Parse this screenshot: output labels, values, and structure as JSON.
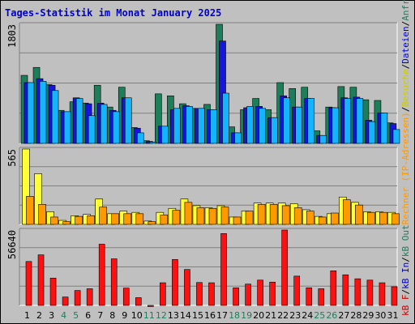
{
  "chart_data": {
    "type": "bar",
    "title": "Tages-Statistik im Monat January 2025",
    "categories": [
      "1",
      "2",
      "3",
      "4",
      "5",
      "6",
      "7",
      "8",
      "9",
      "10",
      "11",
      "12",
      "13",
      "14",
      "15",
      "16",
      "17",
      "18",
      "19",
      "20",
      "21",
      "22",
      "23",
      "24",
      "25",
      "26",
      "27",
      "28",
      "29",
      "30",
      "31"
    ],
    "weekend_days": [
      4,
      5,
      11,
      12,
      18,
      19,
      25,
      26
    ],
    "panels": [
      {
        "id": "requests",
        "ymax_label": "1803",
        "ylim": [
          0,
          1803
        ],
        "series": [
          {
            "name": "Anfragen",
            "color": "#1e7e5a",
            "values": [
              1030,
              1150,
              890,
              500,
              630,
              610,
              880,
              550,
              850,
              240,
              40,
              750,
              720,
              600,
              530,
              590,
              1803,
              250,
              510,
              680,
              510,
              920,
              830,
              850,
              190,
              550,
              860,
              850,
              660,
              650,
              310
            ]
          },
          {
            "name": "Dateien",
            "color": "#1515dc",
            "values": [
              920,
              980,
              880,
              480,
              690,
              600,
              610,
              500,
              690,
              230,
              30,
              260,
              510,
              570,
              530,
              510,
              1550,
              160,
              540,
              560,
              390,
              720,
              550,
              680,
              120,
              540,
              690,
              700,
              350,
              460,
              300
            ]
          },
          {
            "name": "Rechner",
            "color": "#14b4ff",
            "values": [
              920,
              940,
              800,
              480,
              680,
              420,
              590,
              480,
              690,
              160,
              20,
              260,
              530,
              560,
              530,
              510,
              760,
              160,
              560,
              530,
              390,
              690,
              550,
              680,
              120,
              540,
              680,
              680,
              330,
              460,
              210
            ]
          }
        ]
      },
      {
        "id": "hosts",
        "ymax_label": "565",
        "ylim": [
          0,
          565
        ],
        "series": [
          {
            "name": "Besuche",
            "color": "#ffff33",
            "values": [
              565,
              380,
              95,
              30,
              65,
              75,
              190,
              80,
              100,
              90,
              25,
              90,
              120,
              190,
              140,
              125,
              140,
              55,
              100,
              160,
              160,
              160,
              155,
              110,
              60,
              80,
              205,
              165,
              95,
              95,
              90
            ]
          },
          {
            "name": "IP-Adressen",
            "color": "#ff9900",
            "values": [
              210,
              150,
              55,
              20,
              60,
              65,
              130,
              80,
              80,
              80,
              20,
              70,
              105,
              165,
              125,
              120,
              130,
              55,
              100,
              150,
              150,
              140,
              125,
              100,
              55,
              85,
              185,
              145,
              90,
              90,
              80
            ]
          }
        ]
      },
      {
        "id": "traffic",
        "ymax_label": "56640",
        "ylim": [
          0,
          56640
        ],
        "series": [
          {
            "name": "kB F",
            "color": "#ff1010",
            "values": [
              33000,
              38000,
              20500,
              6300,
              11200,
              12500,
              46000,
              35000,
              13000,
              5800,
              0,
              17000,
              34500,
              27000,
              17200,
              17000,
              54000,
              13200,
              16000,
              19000,
              17500,
              56640,
              22000,
              13200,
              12500,
              26000,
              23000,
              20000,
              19000,
              17000,
              14000
            ]
          }
        ]
      }
    ],
    "legend_vertical": [
      {
        "text": "kB F",
        "color": "#cc0000"
      },
      {
        "text": "/",
        "color": "#000000"
      },
      {
        "text": "kB In",
        "color": "#0000cc"
      },
      {
        "text": "/",
        "color": "#000000"
      },
      {
        "text": "kB Out",
        "color": "#1e7e5a"
      },
      {
        "text": "Rechner (IP-Adressen)",
        "color": "#ff9900"
      },
      {
        "text": "/",
        "color": "#000000"
      },
      {
        "text": "Besuche",
        "color": "#cccc00"
      },
      {
        "text": "/",
        "color": "#000000"
      },
      {
        "text": "Dateien",
        "color": "#0000cc"
      },
      {
        "text": "/",
        "color": "#000000"
      },
      {
        "text": "Anfragen",
        "color": "#1e7e5a"
      }
    ],
    "colors": {
      "weekday_label": "#000000",
      "weekend_label": "#1e7e5a",
      "panel_bg": "#c0c0c0",
      "grid": "#7f7f7f"
    }
  }
}
